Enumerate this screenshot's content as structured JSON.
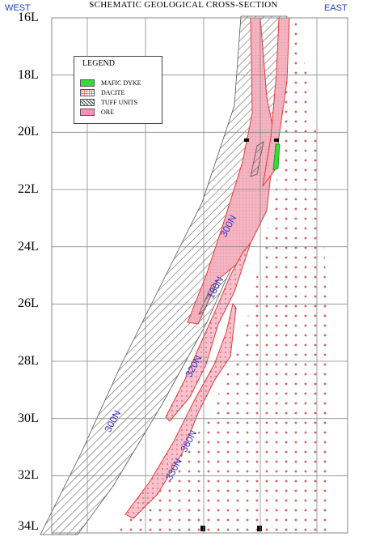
{
  "title": "SCHEMATIC GEOLOGICAL CROSS-SECTION",
  "direction_left": "WEST",
  "direction_right": "EAST",
  "levels": [
    "16L",
    "18L",
    "20L",
    "22L",
    "24L",
    "26L",
    "28L",
    "30L",
    "32L",
    "34L"
  ],
  "legend": {
    "title": "LEGEND",
    "items": [
      {
        "label": "MAFIC DYKE",
        "color": "#33dd33"
      },
      {
        "label": "DACITE",
        "color": "#f2b7a0"
      },
      {
        "label": "TUFF UNITS",
        "color": "#999999"
      },
      {
        "label": "ORE",
        "color": "#ff8fb8"
      }
    ]
  },
  "strike_labels": [
    "300N",
    "180N",
    "320N",
    "330N - 360N",
    "300N"
  ],
  "colors": {
    "grid": "#888888",
    "direction_text": "#1f3fbf",
    "strike_text": "#3030cc",
    "ore_fill": "#f4b6c2",
    "ore_outline": "#e53935",
    "dacite_dot": "#c62828",
    "tuff_hatch": "#555555"
  }
}
